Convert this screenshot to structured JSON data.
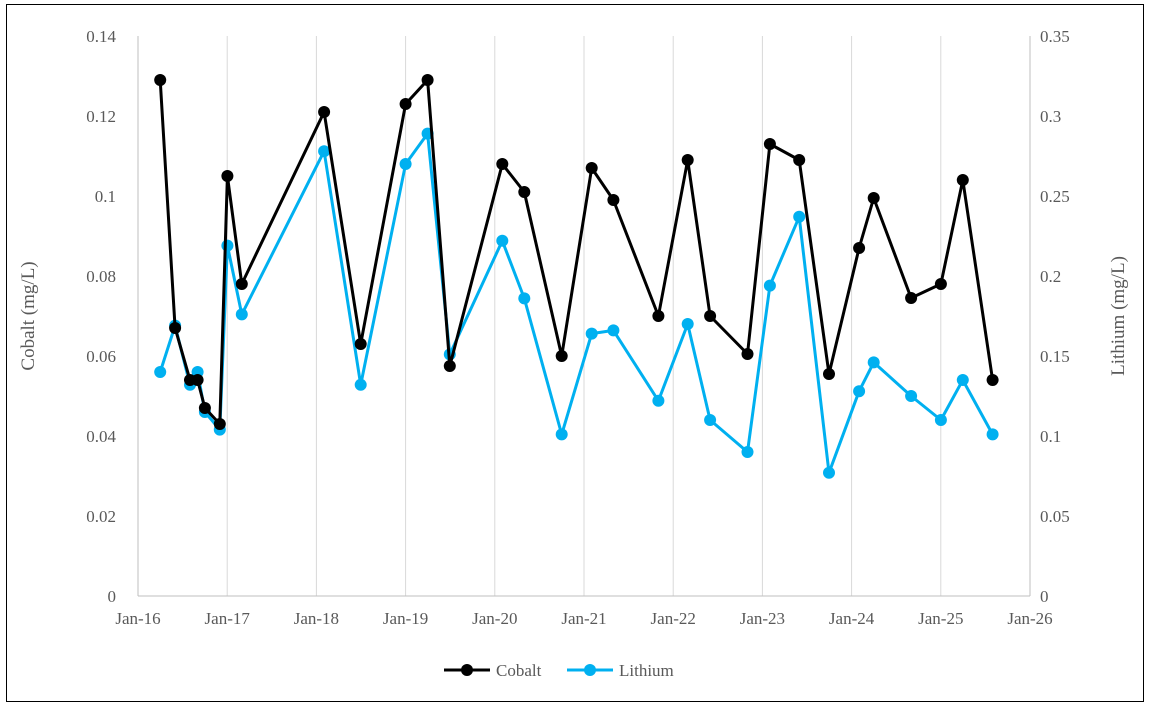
{
  "chart_data": {
    "type": "line",
    "title": "",
    "x_axis": {
      "type": "date",
      "range": [
        "2016-01-01",
        "2026-01-01"
      ],
      "tick_labels": [
        "Jan-16",
        "Jan-17",
        "Jan-18",
        "Jan-19",
        "Jan-20",
        "Jan-21",
        "Jan-22",
        "Jan-23",
        "Jan-24",
        "Jan-25",
        "Jan-26"
      ]
    },
    "y_axis_left": {
      "label": "Cobalt (mg/L)",
      "range": [
        0,
        0.14
      ],
      "tick_labels": [
        "0",
        "0.02",
        "0.04",
        "0.06",
        "0.08",
        "0.1",
        "0.12",
        "0.14"
      ]
    },
    "y_axis_right": {
      "label": "Lithium (mg/L)",
      "range": [
        0,
        0.35
      ],
      "tick_labels": [
        "0",
        "0.05",
        "0.1",
        "0.15",
        "0.2",
        "0.25",
        "0.3",
        "0.35"
      ]
    },
    "grid": "vertical gridlines at each tick",
    "legend_position": "bottom",
    "series": [
      {
        "name": "Cobalt",
        "axis": "left",
        "color": "#000000",
        "points": [
          [
            "2016-04-01",
            0.129
          ],
          [
            "2016-06-01",
            0.067
          ],
          [
            "2016-08-01",
            0.054
          ],
          [
            "2016-09-01",
            0.054
          ],
          [
            "2016-10-01",
            0.047
          ],
          [
            "2016-12-01",
            0.043
          ],
          [
            "2017-01-01",
            0.105
          ],
          [
            "2017-03-01",
            0.078
          ],
          [
            "2018-02-01",
            0.121
          ],
          [
            "2018-07-01",
            0.063
          ],
          [
            "2019-01-01",
            0.123
          ],
          [
            "2019-04-01",
            0.129
          ],
          [
            "2019-07-01",
            0.0575
          ],
          [
            "2020-02-01",
            0.108
          ],
          [
            "2020-05-01",
            0.101
          ],
          [
            "2020-10-01",
            0.06
          ],
          [
            "2021-02-01",
            0.107
          ],
          [
            "2021-05-01",
            0.099
          ],
          [
            "2021-11-01",
            0.07
          ],
          [
            "2022-03-01",
            0.109
          ],
          [
            "2022-06-01",
            0.07
          ],
          [
            "2022-11-01",
            0.0605
          ],
          [
            "2023-02-01",
            0.113
          ],
          [
            "2023-06-01",
            0.109
          ],
          [
            "2023-10-01",
            0.0555
          ],
          [
            "2024-02-01",
            0.087
          ],
          [
            "2024-04-01",
            0.0995
          ],
          [
            "2024-09-01",
            0.0745
          ],
          [
            "2025-01-01",
            0.078
          ],
          [
            "2025-04-01",
            0.104
          ],
          [
            "2025-08-01",
            0.054
          ]
        ]
      },
      {
        "name": "Lithium",
        "axis": "right",
        "color": "#00B0F0",
        "points": [
          [
            "2016-04-01",
            0.14
          ],
          [
            "2016-06-01",
            0.169
          ],
          [
            "2016-08-01",
            0.132
          ],
          [
            "2016-09-01",
            0.14
          ],
          [
            "2016-10-01",
            0.115
          ],
          [
            "2016-12-01",
            0.104
          ],
          [
            "2017-01-01",
            0.219
          ],
          [
            "2017-03-01",
            0.176
          ],
          [
            "2018-02-01",
            0.278
          ],
          [
            "2018-07-01",
            0.132
          ],
          [
            "2019-01-01",
            0.27
          ],
          [
            "2019-04-01",
            0.289
          ],
          [
            "2019-07-01",
            0.151
          ],
          [
            "2020-02-01",
            0.222
          ],
          [
            "2020-05-01",
            0.186
          ],
          [
            "2020-10-01",
            0.101
          ],
          [
            "2021-02-01",
            0.164
          ],
          [
            "2021-05-01",
            0.166
          ],
          [
            "2021-11-01",
            0.122
          ],
          [
            "2022-03-01",
            0.17
          ],
          [
            "2022-06-01",
            0.11
          ],
          [
            "2022-11-01",
            0.09
          ],
          [
            "2023-02-01",
            0.194
          ],
          [
            "2023-06-01",
            0.237
          ],
          [
            "2023-10-01",
            0.077
          ],
          [
            "2024-02-01",
            0.128
          ],
          [
            "2024-04-01",
            0.146
          ],
          [
            "2024-09-01",
            0.125
          ],
          [
            "2025-01-01",
            0.11
          ],
          [
            "2025-04-01",
            0.135
          ],
          [
            "2025-08-01",
            0.101
          ]
        ]
      }
    ]
  }
}
